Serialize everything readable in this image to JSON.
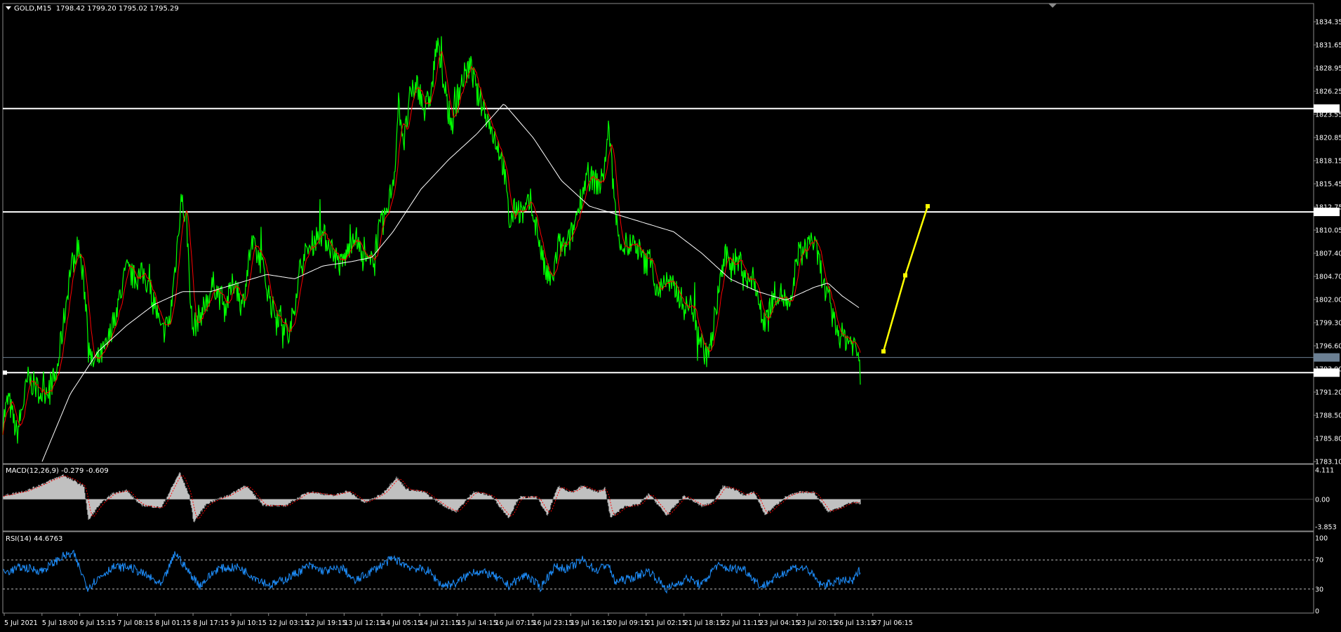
{
  "header": {
    "symbol_label": "GOLD,M15",
    "ohlc_label": "1798.42 1799.20 1795.02 1795.29"
  },
  "macd": {
    "label": "MACD(12,26,9) -0.279 -0.609"
  },
  "rsi": {
    "label": "RSI(14) 44.6763"
  },
  "colors": {
    "background": "#000000",
    "price_series": "#00ff00",
    "fast_ma": "#ff0000",
    "slow_ma": "#ffffff",
    "horizontal_lines": "#ffffff",
    "current_price_line": "#6b7f93",
    "projection": "#ffff00",
    "macd_hist": "#c0c0c0",
    "macd_signal": "#ff0000",
    "rsi_line": "#1e90ff"
  },
  "chart_data": [
    {
      "type": "line",
      "panel": "price",
      "ylim": [
        1783.1,
        1836.4
      ],
      "y_ticks": [
        "1834.35",
        "1831.65",
        "1828.95",
        "1826.25",
        "1823.55",
        "1820.85",
        "1818.15",
        "1815.45",
        "1812.75",
        "1810.05",
        "1807.40",
        "1804.70",
        "1802.00",
        "1799.30",
        "1796.60",
        "1793.90",
        "1791.20",
        "1788.50",
        "1785.80",
        "1783.10"
      ],
      "x_ticks": [
        "5 Jul 2021",
        "5 Jul 18:00",
        "6 Jul 15:15",
        "7 Jul 08:15",
        "8 Jul 01:15",
        "8 Jul 17:15",
        "9 Jul 10:15",
        "12 Jul 03:15",
        "12 Jul 19:15",
        "13 Jul 12:15",
        "14 Jul 05:15",
        "14 Jul 21:15",
        "15 Jul 14:15",
        "16 Jul 07:15",
        "16 Jul 23:15",
        "19 Jul 16:15",
        "20 Jul 09:15",
        "21 Jul 02:15",
        "21 Jul 18:15",
        "22 Jul 11:15",
        "23 Jul 04:15",
        "23 Jul 20:15",
        "26 Jul 13:15",
        "27 Jul 06:15"
      ],
      "series_knots": [
        [
          0,
          1786.5
        ],
        [
          12,
          1790.5
        ],
        [
          24,
          1786.2
        ],
        [
          40,
          1792.8
        ],
        [
          60,
          1791.0
        ],
        [
          80,
          1793.0
        ],
        [
          90,
          1799.0
        ],
        [
          100,
          1805.5
        ],
        [
          112,
          1808.5
        ],
        [
          122,
          1802.0
        ],
        [
          130,
          1794.5
        ],
        [
          140,
          1795.0
        ],
        [
          152,
          1796.5
        ],
        [
          168,
          1801.5
        ],
        [
          180,
          1805.5
        ],
        [
          192,
          1804.5
        ],
        [
          205,
          1805.0
        ],
        [
          218,
          1802.5
        ],
        [
          230,
          1798.0
        ],
        [
          242,
          1799.5
        ],
        [
          252,
          1808.0
        ],
        [
          258,
          1814.0
        ],
        [
          266,
          1811.0
        ],
        [
          274,
          1798.5
        ],
        [
          290,
          1801.0
        ],
        [
          305,
          1804.0
        ],
        [
          320,
          1801.0
        ],
        [
          335,
          1804.5
        ],
        [
          345,
          1801.0
        ],
        [
          358,
          1808.5
        ],
        [
          372,
          1806.5
        ],
        [
          388,
          1801.0
        ],
        [
          400,
          1800.0
        ],
        [
          412,
          1797.5
        ],
        [
          428,
          1806.0
        ],
        [
          440,
          1808.0
        ],
        [
          456,
          1810.0
        ],
        [
          470,
          1808.5
        ],
        [
          485,
          1806.0
        ],
        [
          495,
          1807.5
        ],
        [
          505,
          1810.0
        ],
        [
          515,
          1807.0
        ],
        [
          528,
          1806.0
        ],
        [
          540,
          1810.0
        ],
        [
          552,
          1812.5
        ],
        [
          562,
          1817.0
        ],
        [
          568,
          1825.0
        ],
        [
          576,
          1820.5
        ],
        [
          584,
          1825.5
        ],
        [
          595,
          1827.5
        ],
        [
          605,
          1824.0
        ],
        [
          615,
          1826.5
        ],
        [
          622,
          1832.0
        ],
        [
          630,
          1829.0
        ],
        [
          636,
          1825.0
        ],
        [
          644,
          1822.5
        ],
        [
          652,
          1826.0
        ],
        [
          660,
          1828.0
        ],
        [
          670,
          1829.5
        ],
        [
          680,
          1826.0
        ],
        [
          690,
          1824.5
        ],
        [
          700,
          1822.0
        ],
        [
          710,
          1820.0
        ],
        [
          718,
          1817.5
        ],
        [
          726,
          1811.0
        ],
        [
          736,
          1813.0
        ],
        [
          746,
          1812.0
        ],
        [
          756,
          1813.5
        ],
        [
          766,
          1810.0
        ],
        [
          776,
          1805.5
        ],
        [
          786,
          1804.0
        ],
        [
          796,
          1808.5
        ],
        [
          806,
          1808.0
        ],
        [
          816,
          1810.0
        ],
        [
          826,
          1813.5
        ],
        [
          836,
          1816.5
        ],
        [
          846,
          1816.0
        ],
        [
          856,
          1815.5
        ],
        [
          862,
          1818.0
        ],
        [
          868,
          1822.5
        ],
        [
          874,
          1815.0
        ],
        [
          880,
          1810.0
        ],
        [
          890,
          1808.0
        ],
        [
          900,
          1808.5
        ],
        [
          910,
          1808.0
        ],
        [
          920,
          1806.0
        ],
        [
          928,
          1807.5
        ],
        [
          936,
          1802.5
        ],
        [
          946,
          1804.5
        ],
        [
          956,
          1803.5
        ],
        [
          966,
          1803.0
        ],
        [
          976,
          1801.0
        ],
        [
          986,
          1801.5
        ],
        [
          996,
          1798.0
        ],
        [
          1006,
          1795.5
        ],
        [
          1016,
          1797.5
        ],
        [
          1026,
          1804.5
        ],
        [
          1034,
          1807.0
        ],
        [
          1046,
          1806.5
        ],
        [
          1056,
          1806.5
        ],
        [
          1066,
          1804.0
        ],
        [
          1076,
          1804.5
        ],
        [
          1086,
          1799.5
        ],
        [
          1096,
          1801.0
        ],
        [
          1106,
          1803.0
        ],
        [
          1116,
          1802.5
        ],
        [
          1126,
          1800.5
        ],
        [
          1136,
          1807.5
        ],
        [
          1146,
          1807.5
        ],
        [
          1156,
          1809.5
        ],
        [
          1166,
          1807.0
        ],
        [
          1176,
          1803.0
        ],
        [
          1186,
          1800.0
        ],
        [
          1196,
          1798.0
        ],
        [
          1206,
          1797.5
        ],
        [
          1216,
          1797.0
        ],
        [
          1224,
          1795.29
        ]
      ],
      "slow_ma_knots": [
        [
          60,
          1783.1
        ],
        [
          100,
          1791.0
        ],
        [
          140,
          1796.0
        ],
        [
          180,
          1799.0
        ],
        [
          220,
          1801.5
        ],
        [
          260,
          1803.0
        ],
        [
          300,
          1803.0
        ],
        [
          340,
          1804.0
        ],
        [
          380,
          1805.0
        ],
        [
          420,
          1804.5
        ],
        [
          460,
          1806.0
        ],
        [
          500,
          1806.5
        ],
        [
          530,
          1807.0
        ],
        [
          560,
          1810.0
        ],
        [
          600,
          1815.0
        ],
        [
          640,
          1818.5
        ],
        [
          680,
          1821.5
        ],
        [
          718,
          1825.0
        ],
        [
          760,
          1821.0
        ],
        [
          800,
          1816.0
        ],
        [
          840,
          1813.0
        ],
        [
          880,
          1812.0
        ],
        [
          920,
          1811.0
        ],
        [
          960,
          1810.0
        ],
        [
          1000,
          1807.5
        ],
        [
          1040,
          1804.5
        ],
        [
          1080,
          1803.0
        ],
        [
          1120,
          1802.0
        ],
        [
          1160,
          1803.5
        ],
        [
          1180,
          1804.0
        ],
        [
          1200,
          1802.5
        ],
        [
          1226,
          1801.0
        ]
      ],
      "horizontal_levels": [
        1824.43,
        1812.33,
        1793.51
      ],
      "current_price": 1795.29,
      "projection_points": [
        [
          1259,
          1796.0
        ],
        [
          1290,
          1804.9
        ],
        [
          1322,
          1813.0
        ]
      ]
    },
    {
      "type": "bar",
      "panel": "macd",
      "y_ticks": [
        "4.111",
        "0.00",
        "-3.853"
      ],
      "ylim": [
        -3.853,
        4.111
      ],
      "hist_knots": [
        [
          5,
          0.5
        ],
        [
          40,
          1.3
        ],
        [
          90,
          3.4
        ],
        [
          120,
          1.8
        ],
        [
          126,
          -3.0
        ],
        [
          140,
          -1.0
        ],
        [
          160,
          0.8
        ],
        [
          180,
          1.3
        ],
        [
          200,
          -0.8
        ],
        [
          230,
          -1.2
        ],
        [
          256,
          3.8
        ],
        [
          270,
          0.5
        ],
        [
          276,
          -3.2
        ],
        [
          295,
          -0.6
        ],
        [
          330,
          0.8
        ],
        [
          350,
          2.0
        ],
        [
          375,
          -0.8
        ],
        [
          405,
          -1.0
        ],
        [
          440,
          1.1
        ],
        [
          475,
          0.5
        ],
        [
          495,
          1.2
        ],
        [
          520,
          -0.5
        ],
        [
          545,
          0.8
        ],
        [
          565,
          3.1
        ],
        [
          580,
          1.4
        ],
        [
          605,
          1.0
        ],
        [
          630,
          -0.8
        ],
        [
          650,
          -1.8
        ],
        [
          675,
          1.1
        ],
        [
          700,
          0.5
        ],
        [
          725,
          -2.6
        ],
        [
          740,
          0.3
        ],
        [
          765,
          0.3
        ],
        [
          780,
          -2.3
        ],
        [
          795,
          1.8
        ],
        [
          815,
          1.0
        ],
        [
          830,
          1.9
        ],
        [
          850,
          1.0
        ],
        [
          862,
          1.6
        ],
        [
          870,
          -2.6
        ],
        [
          890,
          -1.0
        ],
        [
          910,
          -0.8
        ],
        [
          925,
          0.8
        ],
        [
          950,
          -2.3
        ],
        [
          975,
          0.5
        ],
        [
          1000,
          -1.0
        ],
        [
          1015,
          -0.5
        ],
        [
          1030,
          1.8
        ],
        [
          1045,
          1.5
        ],
        [
          1060,
          0.6
        ],
        [
          1075,
          1.0
        ],
        [
          1090,
          -2.2
        ],
        [
          1110,
          -0.5
        ],
        [
          1120,
          0.4
        ],
        [
          1140,
          1.0
        ],
        [
          1160,
          1.0
        ],
        [
          1180,
          -1.8
        ],
        [
          1200,
          -1.0
        ],
        [
          1215,
          -0.4
        ],
        [
          1226,
          -0.6
        ]
      ]
    },
    {
      "type": "line",
      "panel": "rsi",
      "y_ticks": [
        "100",
        "70",
        "30",
        "0"
      ],
      "ylim": [
        0,
        100
      ],
      "levels": [
        70,
        30
      ],
      "knots": [
        [
          5,
          52
        ],
        [
          30,
          60
        ],
        [
          60,
          55
        ],
        [
          90,
          75
        ],
        [
          105,
          78
        ],
        [
          115,
          55
        ],
        [
          125,
          32
        ],
        [
          140,
          45
        ],
        [
          160,
          60
        ],
        [
          185,
          60
        ],
        [
          210,
          48
        ],
        [
          230,
          35
        ],
        [
          250,
          80
        ],
        [
          270,
          52
        ],
        [
          285,
          35
        ],
        [
          310,
          58
        ],
        [
          340,
          60
        ],
        [
          360,
          48
        ],
        [
          385,
          35
        ],
        [
          410,
          45
        ],
        [
          440,
          62
        ],
        [
          460,
          55
        ],
        [
          490,
          58
        ],
        [
          505,
          40
        ],
        [
          530,
          55
        ],
        [
          560,
          72
        ],
        [
          585,
          60
        ],
        [
          610,
          55
        ],
        [
          630,
          35
        ],
        [
          650,
          38
        ],
        [
          675,
          55
        ],
        [
          700,
          50
        ],
        [
          725,
          35
        ],
        [
          750,
          50
        ],
        [
          770,
          32
        ],
        [
          790,
          60
        ],
        [
          810,
          58
        ],
        [
          830,
          70
        ],
        [
          850,
          55
        ],
        [
          866,
          65
        ],
        [
          876,
          40
        ],
        [
          900,
          45
        ],
        [
          925,
          55
        ],
        [
          950,
          30
        ],
        [
          980,
          45
        ],
        [
          1000,
          35
        ],
        [
          1020,
          62
        ],
        [
          1040,
          58
        ],
        [
          1060,
          58
        ],
        [
          1085,
          33
        ],
        [
          1105,
          45
        ],
        [
          1130,
          60
        ],
        [
          1150,
          58
        ],
        [
          1170,
          35
        ],
        [
          1200,
          42
        ],
        [
          1215,
          40
        ],
        [
          1226,
          58
        ]
      ]
    }
  ]
}
